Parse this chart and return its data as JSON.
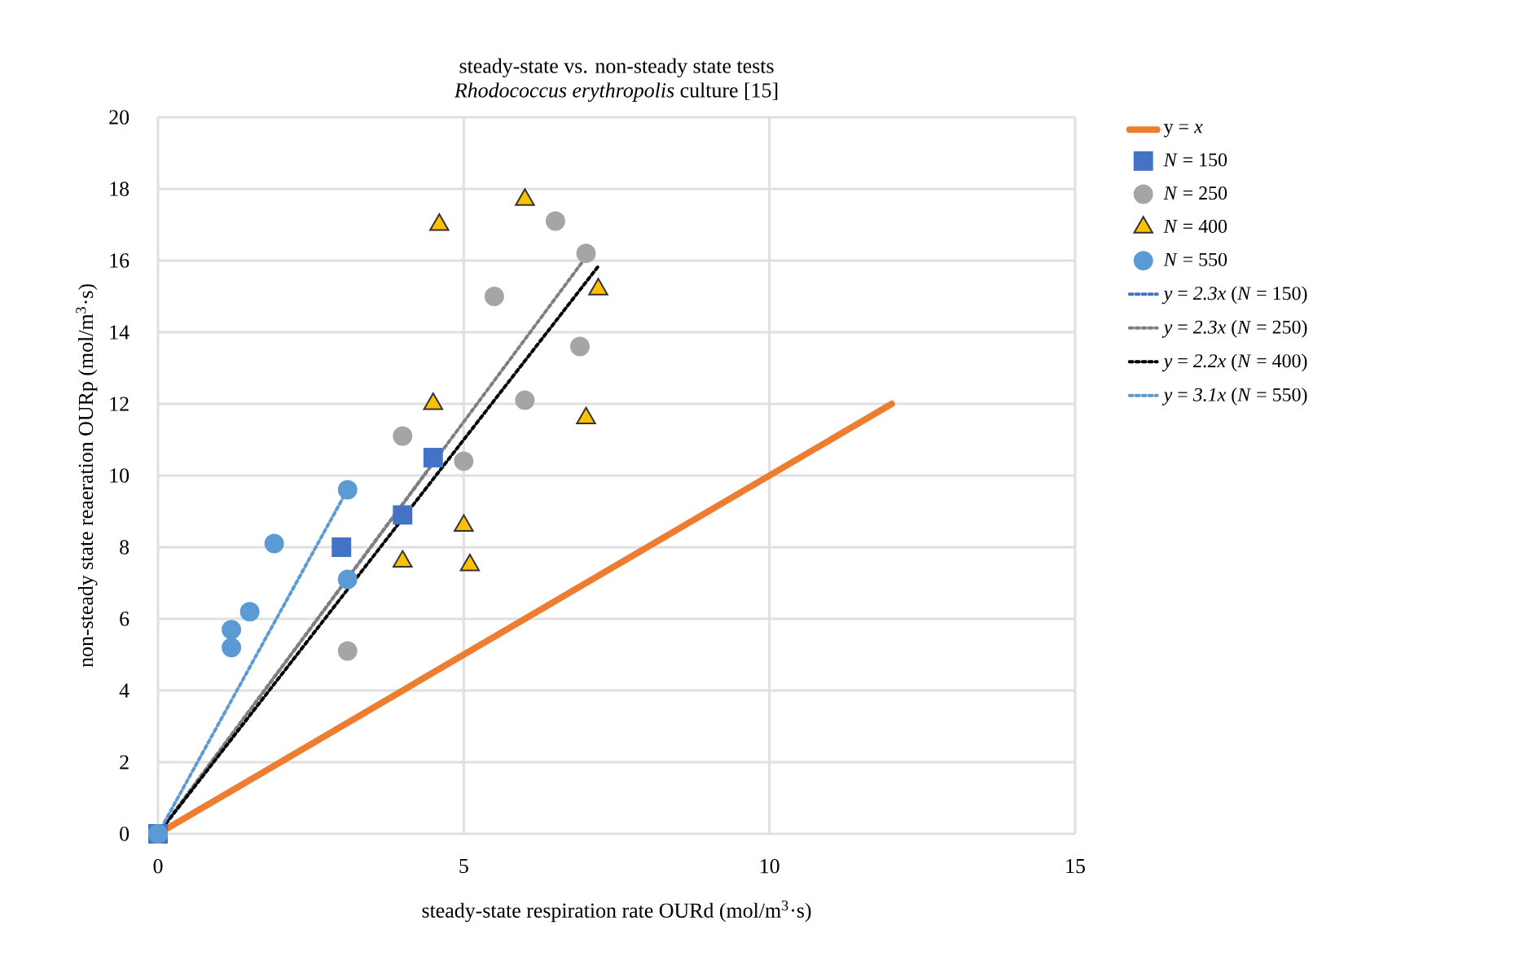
{
  "chart_data": {
    "type": "scatter",
    "title": "steady-state vs. non-steady state tests",
    "subtitle": "*Rhodococcus erythropolis* culture [15]",
    "xlabel": "steady-state respiration rate OURd (mol/m$^{3}$·s)",
    "ylabel": "non-steady state reaeration OURp (mol/m$^{3}$·s)",
    "xlim": [
      0,
      15
    ],
    "ylim": [
      0,
      20
    ],
    "xticks": [
      0,
      5,
      10,
      15
    ],
    "yticks": [
      0,
      2,
      4,
      6,
      8,
      10,
      12,
      14,
      16,
      18,
      20
    ],
    "grid": true,
    "legend": "right",
    "series": [
      {
        "name": "y = *x*",
        "type": "line",
        "color": "#ed7d31",
        "line_style": "solid",
        "marker": "none",
        "x": [
          0,
          12
        ],
        "values": [
          0,
          12
        ]
      },
      {
        "name": "*N* = 150",
        "color": "#4472c4",
        "marker": "square",
        "x": [
          0,
          3,
          4,
          4.5
        ],
        "values": [
          0,
          8,
          8.9,
          10.5
        ]
      },
      {
        "name": "*N* = 250",
        "color": "#a5a5a5",
        "marker": "circle",
        "x": [
          0,
          3.1,
          4,
          5,
          5.5,
          6,
          6.5,
          7,
          6.9
        ],
        "values": [
          0,
          5.1,
          11.1,
          10.4,
          15,
          12.1,
          17.1,
          16.2,
          13.6
        ]
      },
      {
        "name": "*N* = 400",
        "color": "#ffc000",
        "marker": "triangle",
        "x": [
          4.6,
          6,
          7.2,
          4.5,
          7,
          5,
          4,
          5.1
        ],
        "values": [
          17,
          17.7,
          15.2,
          12,
          11.6,
          8.6,
          7.6,
          7.5
        ]
      },
      {
        "name": "*N* = 550",
        "color": "#5b9bd5",
        "marker": "circle",
        "x": [
          0,
          3.1,
          1.9,
          1.5,
          1.2,
          1.2,
          3.1
        ],
        "values": [
          0,
          9.6,
          8.1,
          6.2,
          5.7,
          5.2,
          7.1
        ]
      },
      {
        "name": "*y* = *2.3x* (*N* = 150)",
        "type": "line",
        "color": "#4472c4",
        "line_style": "dotted",
        "marker": "none",
        "x": [
          0,
          4.5
        ],
        "values": [
          0,
          10.35
        ]
      },
      {
        "name": "*y* = *2.3x* (*N* = 250)",
        "type": "line",
        "color": "#7f7f7f",
        "line_style": "dotted",
        "marker": "none",
        "x": [
          0,
          7
        ],
        "values": [
          0,
          16.1
        ]
      },
      {
        "name": "*y* = *2.2x* (*N* = 400)",
        "type": "line",
        "color": "#000000",
        "line_style": "dotted",
        "marker": "none",
        "x": [
          0,
          7.2
        ],
        "values": [
          0,
          15.84
        ]
      },
      {
        "name": "*y* = *3.1x* (*N* = 550)",
        "type": "line",
        "color": "#5b9bd5",
        "line_style": "dotted",
        "marker": "none",
        "x": [
          0,
          3.1
        ],
        "values": [
          0,
          9.61
        ]
      }
    ]
  }
}
